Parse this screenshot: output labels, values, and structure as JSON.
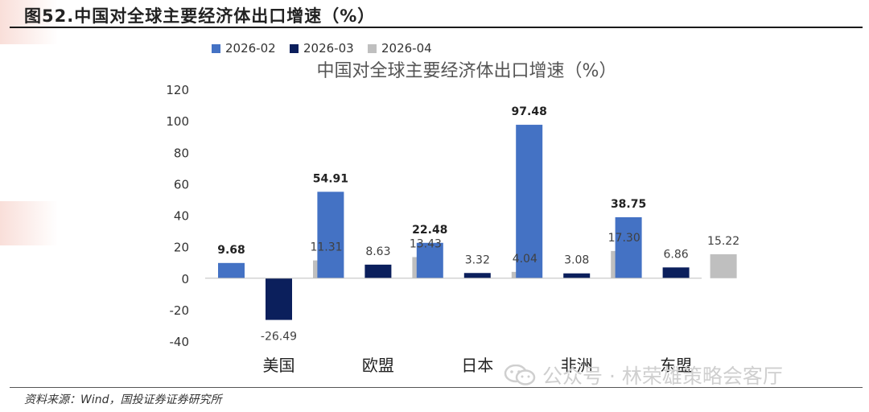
{
  "header": {
    "figure_title": "图52.中国对全球主要经济体出口增速（%）"
  },
  "source_note": "资料来源：Wind，国投证券证券研究所",
  "watermark": "公众号 · 林荣雄策略会客厅",
  "chart_data": {
    "type": "bar",
    "title": "中国对全球主要经济体出口增速（%）",
    "categories": [
      "美国",
      "欧盟",
      "日本",
      "非洲",
      "东盟"
    ],
    "series": [
      {
        "name": "2026-02",
        "color": "#4472C4",
        "values": [
          9.68,
          54.91,
          22.48,
          97.48,
          38.75
        ],
        "labels": [
          "9.68",
          "54.91",
          "22.48",
          "97.48",
          "38.75"
        ]
      },
      {
        "name": "2026-03",
        "color": "#0B1F5C",
        "values": [
          -26.49,
          8.63,
          3.32,
          3.08,
          6.86
        ],
        "labels": [
          "-26.49",
          "8.63",
          "3.32",
          "3.08",
          "6.86"
        ]
      },
      {
        "name": "2026-04",
        "color": "#BFBFBF",
        "values": [
          11.31,
          13.43,
          4.04,
          17.3,
          15.22
        ],
        "labels": [
          "11.31",
          "13.43",
          "4.04",
          "17.30",
          "15.22"
        ]
      }
    ],
    "yticks": [
      "120",
      "100",
      "80",
      "60",
      "40",
      "20",
      "0",
      "-20",
      "-40"
    ],
    "ylim": [
      -40,
      120
    ],
    "legend_position": "top-left",
    "grid": false
  }
}
